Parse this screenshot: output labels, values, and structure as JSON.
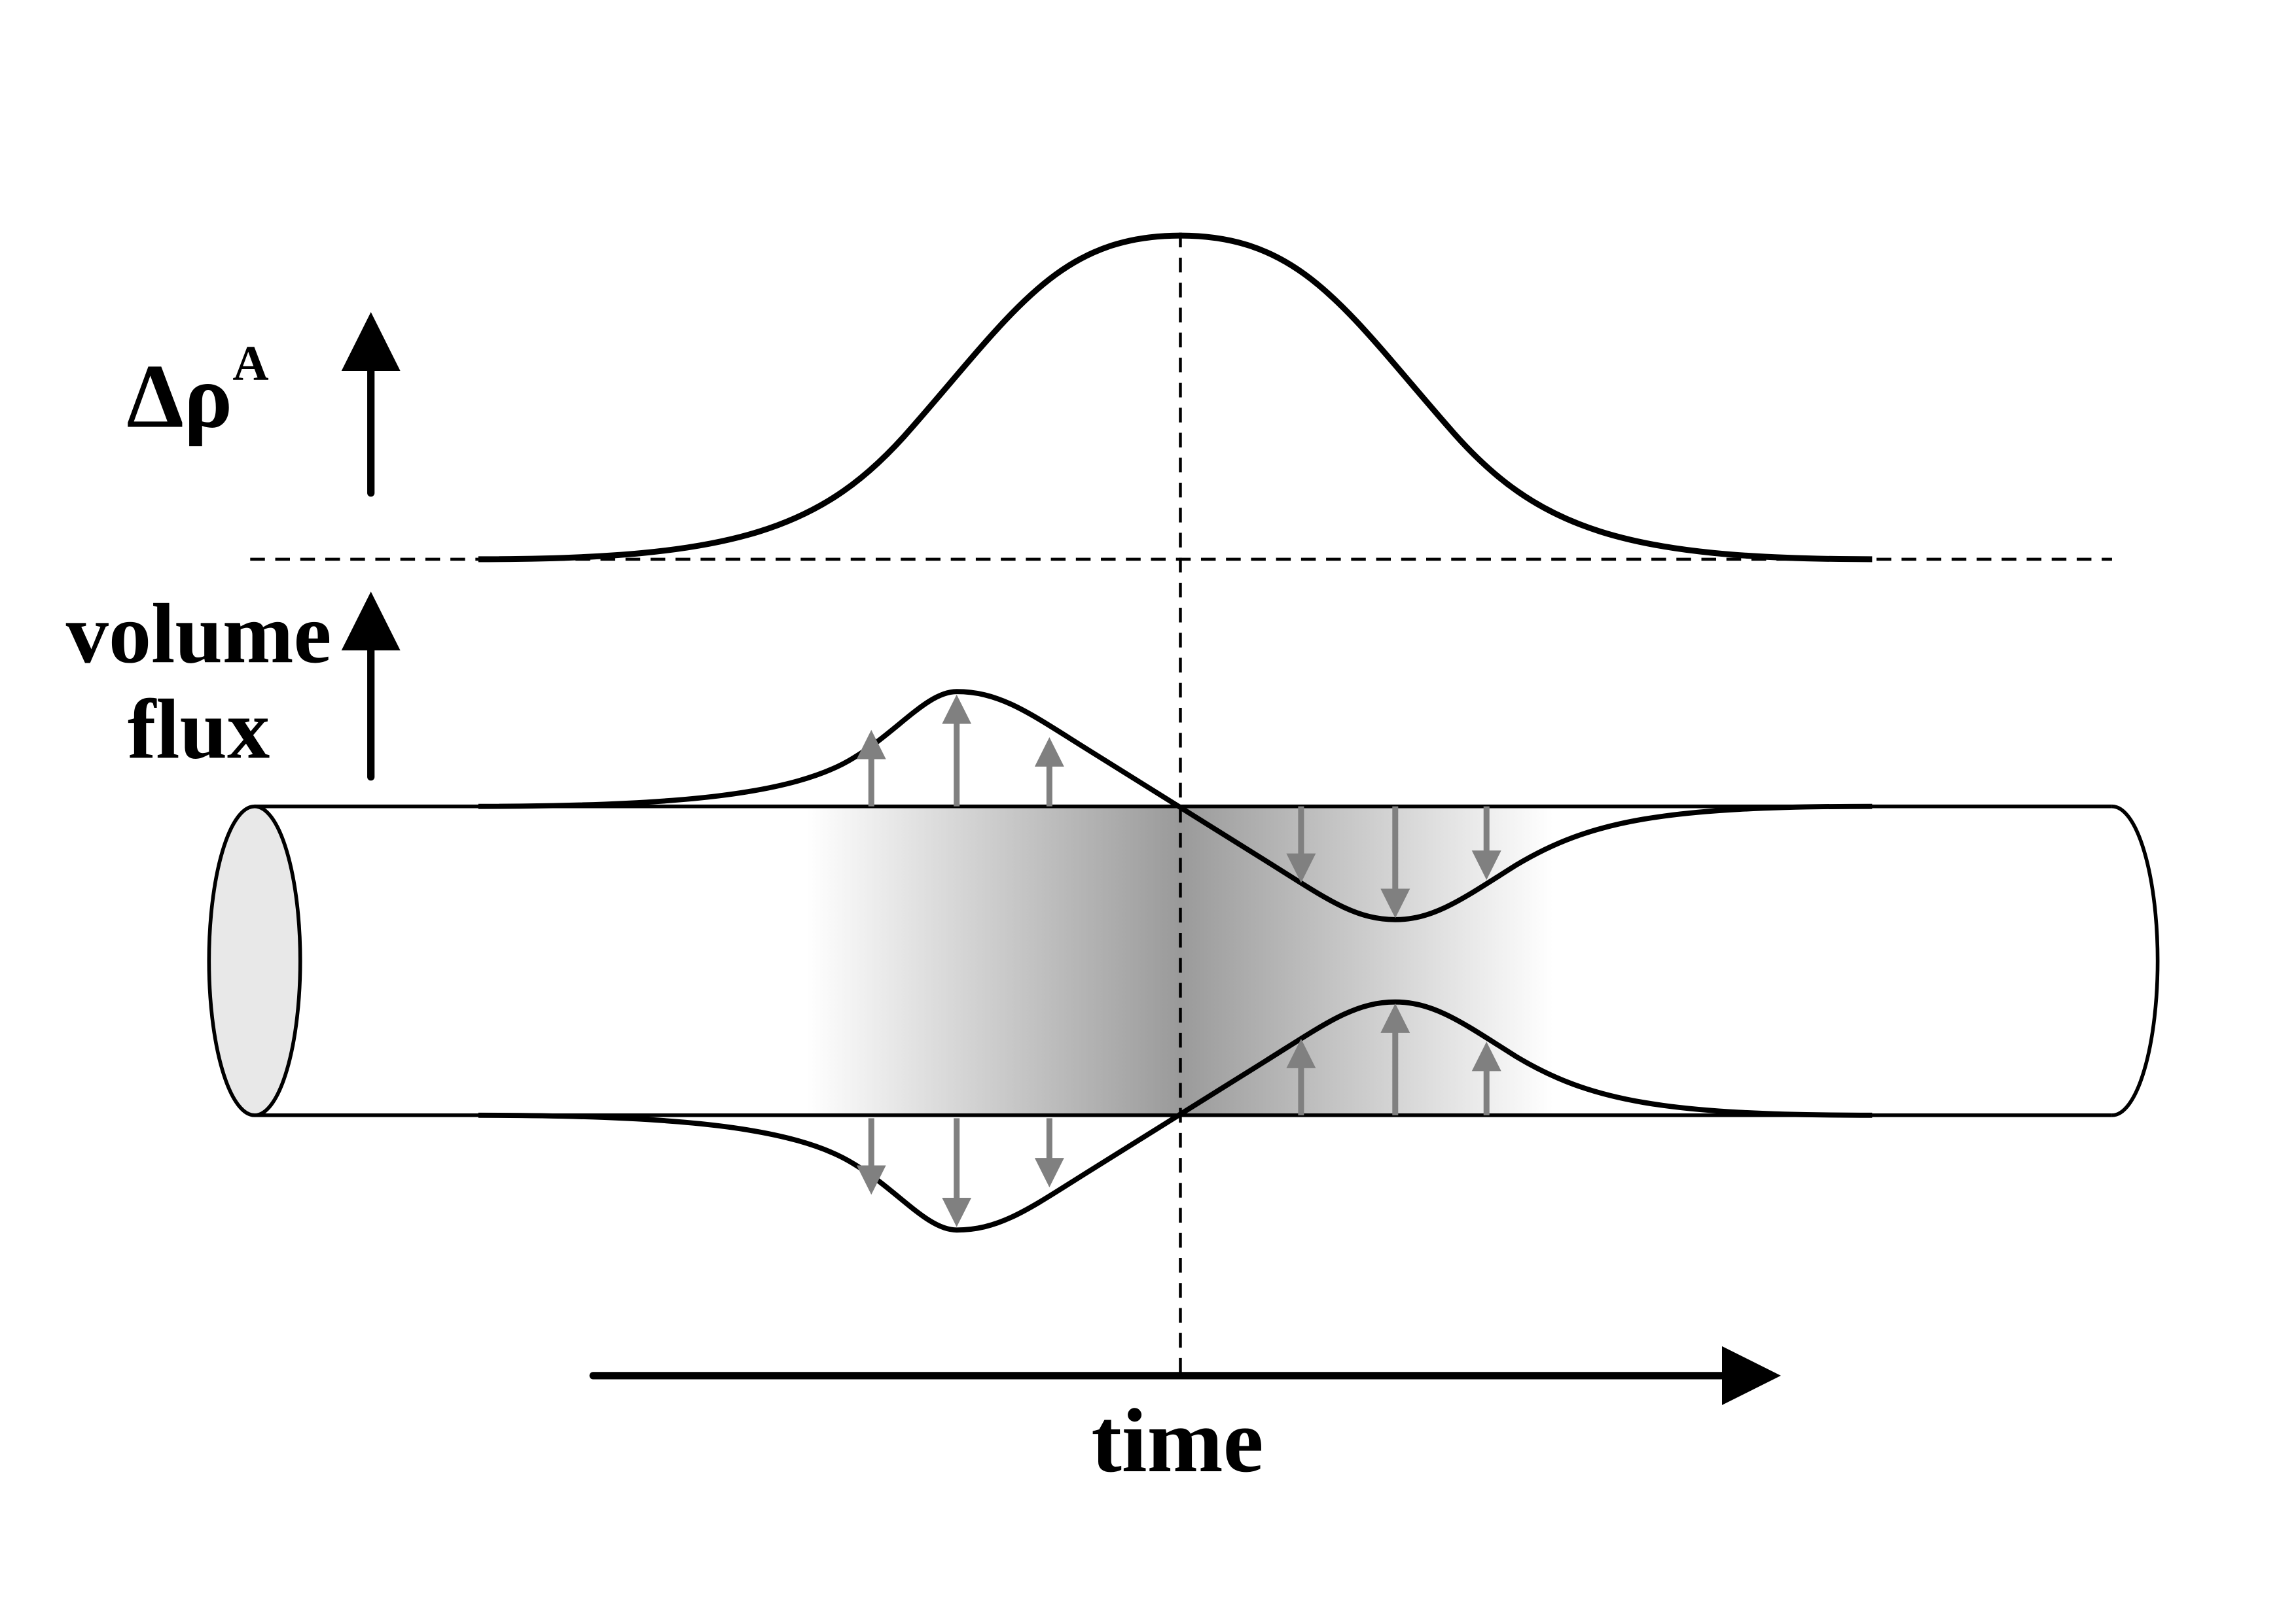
{
  "labels": {
    "density": "Δρ",
    "density_superscript": "A",
    "volume": "volume",
    "flux": "flux",
    "time": "time"
  }
}
